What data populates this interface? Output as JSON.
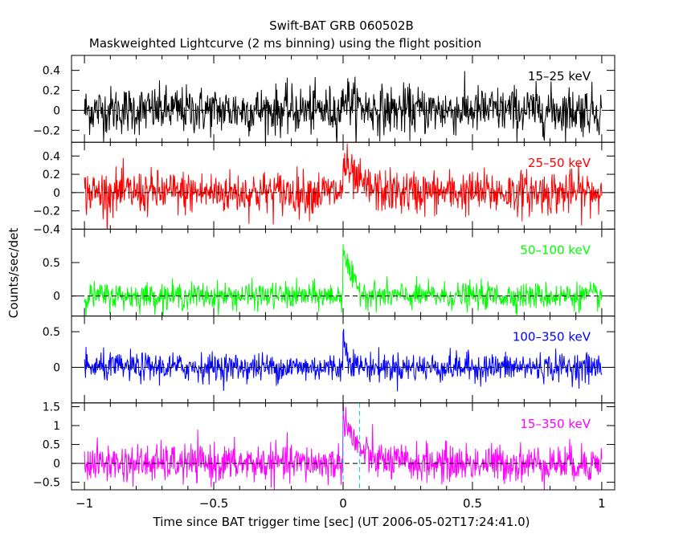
{
  "title": "Swift-BAT GRB 060502B",
  "subtitle": "Maskweighted Lightcurve (2 ms binning) using the flight position",
  "ylabel": "Counts/sec/det",
  "xlabel": "Time since BAT trigger time [sec] (UT 2006-05-02T17:24:41.0)",
  "chart_data": [
    {
      "type": "line",
      "series": [
        {
          "name": "15-25 keV",
          "color": "#000000"
        }
      ],
      "label": "15–25 keV",
      "xlim": [
        -1.05,
        1.05
      ],
      "ylim": [
        -0.32,
        0.55
      ],
      "yticks": [
        -0.2,
        0,
        0.2,
        0.4
      ],
      "ytick_labels": [
        "−0.2",
        "0",
        "0.2",
        "0.4"
      ],
      "noise": 0.12,
      "burst": {
        "peak": 0.18,
        "tau": 0.04
      }
    },
    {
      "type": "line",
      "series": [
        {
          "name": "25-50 keV",
          "color": "#ff0000"
        }
      ],
      "label": "25–50 keV",
      "xlim": [
        -1.05,
        1.05
      ],
      "ylim": [
        -0.4,
        0.55
      ],
      "yticks": [
        -0.4,
        -0.2,
        0,
        0.2,
        0.4
      ],
      "ytick_labels": [
        "−0.4",
        "−0.2",
        "0",
        "0.2",
        "0.4"
      ],
      "noise": 0.12,
      "burst": {
        "peak": 0.35,
        "tau": 0.05
      }
    },
    {
      "type": "line",
      "series": [
        {
          "name": "50-100 keV",
          "color": "#00ff00"
        }
      ],
      "label": "50–100 keV",
      "xlim": [
        -1.05,
        1.05
      ],
      "ylim": [
        -0.3,
        1.0
      ],
      "yticks": [
        0,
        0.5
      ],
      "ytick_labels": [
        "0",
        "0.5"
      ],
      "noise": 0.1,
      "burst": {
        "peak": 0.8,
        "tau": 0.03
      }
    },
    {
      "type": "line",
      "series": [
        {
          "name": "100-350 keV",
          "color": "#0000ff"
        }
      ],
      "label": "100–350 keV",
      "xlim": [
        -1.05,
        1.05
      ],
      "ylim": [
        -0.5,
        0.72
      ],
      "yticks": [
        0,
        0.5
      ],
      "ytick_labels": [
        "0",
        "0.5"
      ],
      "noise": 0.1,
      "burst": {
        "peak": 0.45,
        "tau": 0.02
      }
    },
    {
      "type": "line",
      "series": [
        {
          "name": "15-350 keV",
          "color": "#ff00ff"
        }
      ],
      "label": "15–350 keV",
      "xlim": [
        -1.05,
        1.05
      ],
      "ylim": [
        -0.7,
        1.6
      ],
      "yticks": [
        -0.5,
        0,
        0.5,
        1,
        1.5
      ],
      "ytick_labels": [
        "−0.5",
        "0",
        "0.5",
        "1",
        "1.5"
      ],
      "noise": 0.25,
      "burst": {
        "peak": 1.4,
        "tau": 0.05
      },
      "markers": [
        0.0,
        0.064
      ]
    }
  ],
  "xticks": [
    -1,
    -0.5,
    0,
    0.5,
    1
  ],
  "xtick_labels": [
    "−1",
    "−0.5",
    "0",
    "0.5",
    "1"
  ],
  "marker_color": "#00cccc"
}
